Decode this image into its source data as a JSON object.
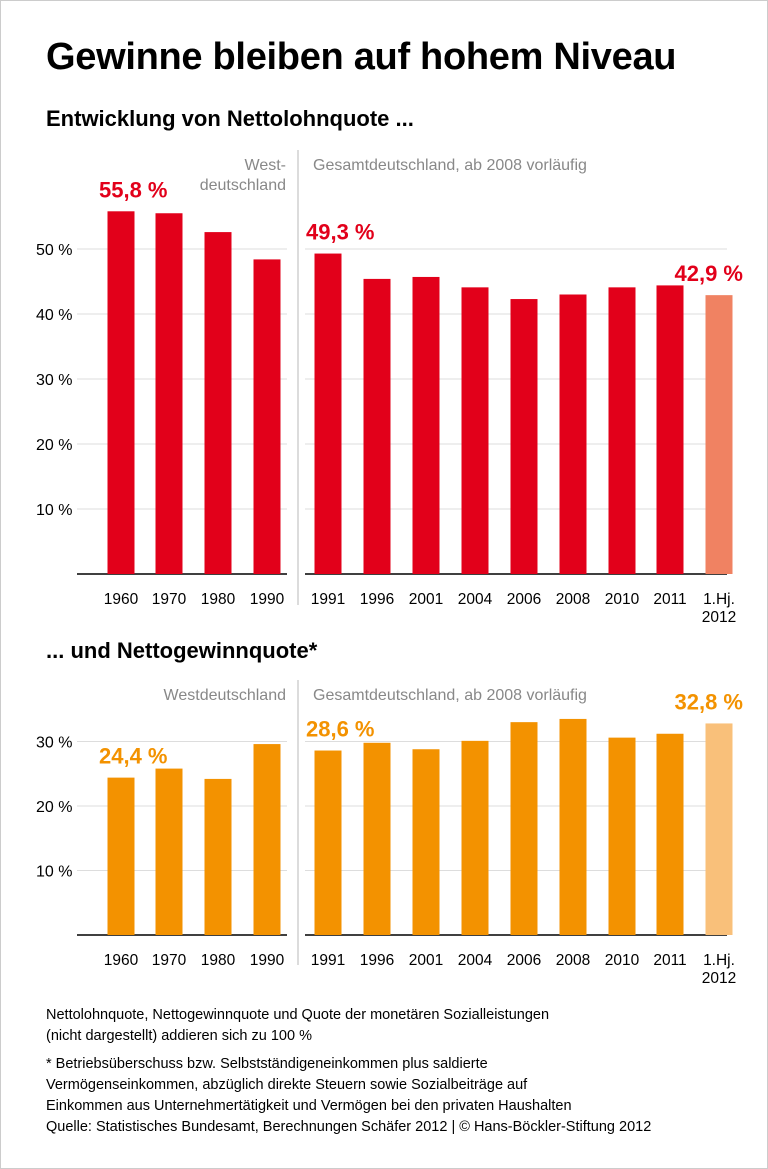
{
  "title": "Gewinne bleiben auf hohem Niveau",
  "chart_data": [
    {
      "type": "bar",
      "title": "Entwicklung von Nettolohnquote ...",
      "panel_labels": {
        "west": "West-\ndeutschland",
        "gesamt": "Gesamtdeutschland, ab 2008 vorläufig"
      },
      "categories": [
        "1960",
        "1970",
        "1980",
        "1990",
        "1991",
        "1996",
        "2001",
        "2004",
        "2006",
        "2008",
        "2010",
        "2011",
        "1.Hj.\n2012"
      ],
      "panels": [
        "west",
        "west",
        "west",
        "west",
        "gesamt",
        "gesamt",
        "gesamt",
        "gesamt",
        "gesamt",
        "gesamt",
        "gesamt",
        "gesamt",
        "gesamt"
      ],
      "values": [
        55.8,
        55.5,
        52.6,
        48.4,
        49.3,
        45.4,
        45.7,
        44.1,
        42.3,
        43.0,
        44.1,
        44.4,
        42.9
      ],
      "data_labels": {
        "0": "55,8 %",
        "4": "49,3 %",
        "12": "42,9 %"
      },
      "yticks": [
        "10 %",
        "20 %",
        "30 %",
        "40 %",
        "50 %"
      ],
      "ytick_values": [
        10,
        20,
        30,
        40,
        50
      ],
      "ylim": [
        0,
        60
      ],
      "grid": true,
      "colors": {
        "bar": "#e2001a",
        "preliminary": "#f08262",
        "label": "#e2001a"
      }
    },
    {
      "type": "bar",
      "title": "... und Nettogewinnquote*",
      "panel_labels": {
        "west": "Westdeutschland",
        "gesamt": "Gesamtdeutschland, ab 2008 vorläufig"
      },
      "categories": [
        "1960",
        "1970",
        "1980",
        "1990",
        "1991",
        "1996",
        "2001",
        "2004",
        "2006",
        "2008",
        "2010",
        "2011",
        "1.Hj.\n2012"
      ],
      "panels": [
        "west",
        "west",
        "west",
        "west",
        "gesamt",
        "gesamt",
        "gesamt",
        "gesamt",
        "gesamt",
        "gesamt",
        "gesamt",
        "gesamt",
        "gesamt"
      ],
      "values": [
        24.4,
        25.8,
        24.2,
        29.6,
        28.6,
        29.8,
        28.8,
        30.1,
        33.0,
        33.5,
        30.6,
        31.2,
        32.8
      ],
      "data_labels": {
        "0": "24,4 %",
        "4": "28,6 %",
        "12": "32,8 %"
      },
      "yticks": [
        "10 %",
        "20 %",
        "30 %"
      ],
      "ytick_values": [
        10,
        20,
        30
      ],
      "ylim": [
        0,
        35
      ],
      "grid": true,
      "colors": {
        "bar": "#f39200",
        "preliminary": "#f9c07a",
        "label": "#f39200"
      }
    }
  ],
  "notes": {
    "line1": "Nettolohnquote, Nettogewinnquote und Quote der monetären Sozialleistungen",
    "line2": "(nicht dargestellt) addieren sich zu 100 %",
    "footnote1": "* Betriebsüberschuss bzw. Selbstständigeneinkommen plus saldierte",
    "footnote2": "Vermögenseinkommen, abzüglich direkte Steuern sowie Sozialbeiträge auf",
    "footnote3": "Einkommen aus Unternehmertätigkeit und Vermögen bei den privaten Haushalten",
    "source": "Quelle: Statistisches Bundesamt, Berechnungen Schäfer 2012 | © Hans-Böckler-Stiftung 2012"
  }
}
